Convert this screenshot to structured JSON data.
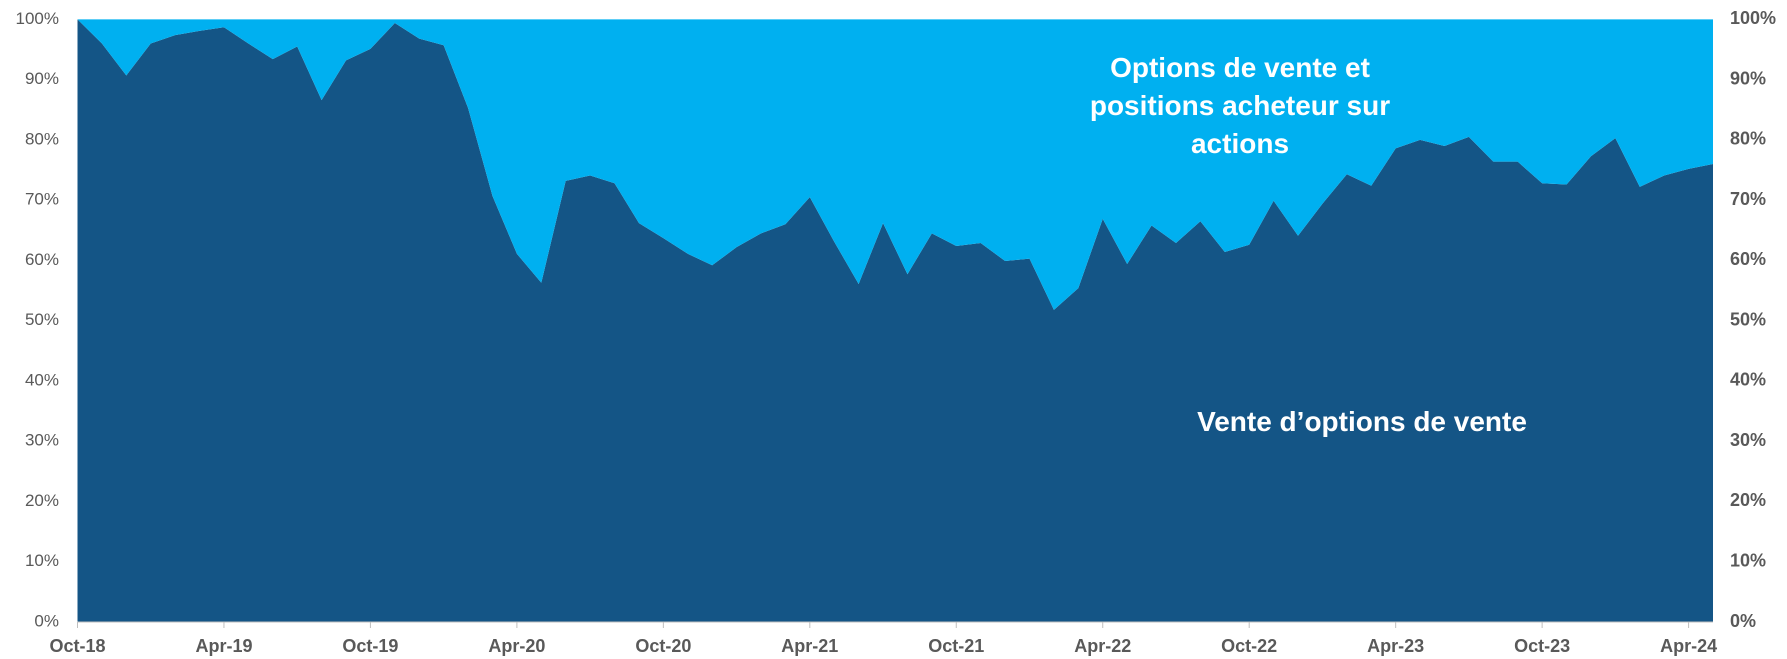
{
  "chart_data": {
    "type": "stacked_area",
    "categories": [
      "Oct-18",
      null,
      null,
      null,
      null,
      null,
      "Apr-19",
      null,
      null,
      null,
      null,
      null,
      "Oct-19",
      null,
      null,
      null,
      null,
      null,
      "Apr-20",
      null,
      null,
      null,
      null,
      null,
      "Oct-20",
      null,
      null,
      null,
      null,
      null,
      "Apr-21",
      null,
      null,
      null,
      null,
      null,
      "Oct-21",
      null,
      null,
      null,
      null,
      null,
      "Apr-22",
      null,
      null,
      null,
      null,
      null,
      "Oct-22",
      null,
      null,
      null,
      null,
      null,
      "Apr-23",
      null,
      null,
      null,
      null,
      null,
      "Oct-23",
      null,
      null,
      null,
      null,
      null,
      "Apr-24",
      null
    ],
    "series": [
      {
        "name": "Vente d’options de vente",
        "color": "#145586",
        "values": [
          100,
          96,
          90.7,
          96,
          97.4,
          98.1,
          98.7,
          96,
          93.4,
          95.5,
          86.6,
          93.2,
          95.1,
          99.4,
          96.8,
          95.7,
          85.3,
          70.7,
          61.1,
          56.3,
          73.2,
          74.1,
          72.8,
          66.2,
          63.7,
          61.1,
          59.2,
          62.2,
          64.5,
          66,
          70.5,
          63.1,
          56.1,
          66.2,
          57.7,
          64.5,
          62.4,
          62.9,
          59.9,
          60.3,
          51.8,
          55.4,
          66.9,
          59.4,
          65.8,
          62.9,
          66.5,
          61.4,
          62.6,
          69.9,
          64.1,
          69.4,
          74.3,
          72.4,
          78.6,
          80,
          79,
          80.5,
          76.4,
          76.4,
          72.8,
          72.6,
          77.3,
          80.3,
          72.2,
          74.1,
          75.2,
          76
        ]
      },
      {
        "name": "Options de vente et positions acheteur sur actions",
        "color": "#00b0f0",
        "values": [
          0,
          4,
          9.3,
          4,
          2.6,
          1.9,
          1.3,
          4,
          6.6,
          4.5,
          13.4,
          6.8,
          4.9,
          0.6,
          3.2,
          4.3,
          14.7,
          29.3,
          38.9,
          43.7,
          26.8,
          25.9,
          27.2,
          33.8,
          36.3,
          38.9,
          40.8,
          37.8,
          35.5,
          34,
          29.5,
          36.9,
          43.9,
          33.8,
          42.3,
          35.5,
          37.6,
          37.1,
          40.1,
          39.7,
          48.2,
          44.6,
          33.1,
          40.6,
          34.2,
          37.1,
          33.5,
          38.6,
          37.4,
          30.1,
          35.9,
          30.6,
          25.7,
          27.6,
          21.4,
          20,
          21,
          19.5,
          23.6,
          23.6,
          27.2,
          27.4,
          22.7,
          19.7,
          27.8,
          25.9,
          24.8,
          24
        ]
      }
    ],
    "ylim": [
      0,
      100
    ],
    "yticks": [
      {
        "value": 0,
        "label": "0%"
      },
      {
        "value": 10,
        "label": "10%"
      },
      {
        "value": 20,
        "label": "20%"
      },
      {
        "value": 30,
        "label": "30%"
      },
      {
        "value": 40,
        "label": "40%"
      },
      {
        "value": 50,
        "label": "50%"
      },
      {
        "value": 60,
        "label": "60%"
      },
      {
        "value": 70,
        "label": "70%"
      },
      {
        "value": 80,
        "label": "80%"
      },
      {
        "value": 90,
        "label": "90%"
      },
      {
        "value": 100,
        "label": "100%"
      }
    ],
    "y2lim": [
      0,
      100
    ],
    "y2ticks": [
      {
        "value": 0,
        "label": "0%"
      },
      {
        "value": 10,
        "label": "10%"
      },
      {
        "value": 20,
        "label": "20%"
      },
      {
        "value": 30,
        "label": "30%"
      },
      {
        "value": 40,
        "label": "40%"
      },
      {
        "value": 50,
        "label": "50%"
      },
      {
        "value": 60,
        "label": "60%"
      },
      {
        "value": 70,
        "label": "70%"
      },
      {
        "value": 80,
        "label": "80%"
      },
      {
        "value": 90,
        "label": "90%"
      },
      {
        "value": 100,
        "label": "100%"
      }
    ]
  }
}
